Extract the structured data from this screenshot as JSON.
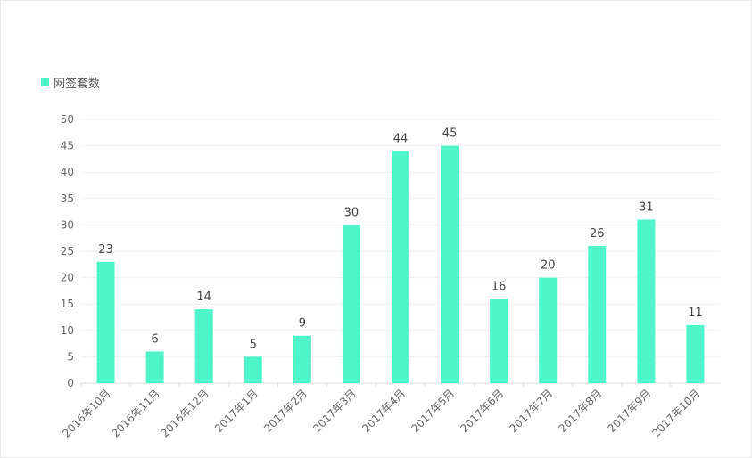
{
  "legend": {
    "label": "网签套数"
  },
  "colors": {
    "bar": "#4ef5c8",
    "grid": "#efefef",
    "axis": "#dddddd"
  },
  "chart_data": {
    "type": "bar",
    "categories": [
      "2016年10月",
      "2016年11月",
      "2016年12月",
      "2017年1月",
      "2017年2月",
      "2017年3月",
      "2017年4月",
      "2017年5月",
      "2017年6月",
      "2017年7月",
      "2017年8月",
      "2017年9月",
      "2017年10月"
    ],
    "series": [
      {
        "name": "网签套数",
        "values": [
          23,
          6,
          14,
          5,
          9,
          30,
          44,
          45,
          16,
          20,
          26,
          31,
          11
        ]
      }
    ],
    "ylim": [
      0,
      50
    ],
    "yticks": [
      0,
      5,
      10,
      15,
      20,
      25,
      30,
      35,
      40,
      45,
      50
    ],
    "grid": true,
    "legend_position": "top-left",
    "data_labels": true
  }
}
